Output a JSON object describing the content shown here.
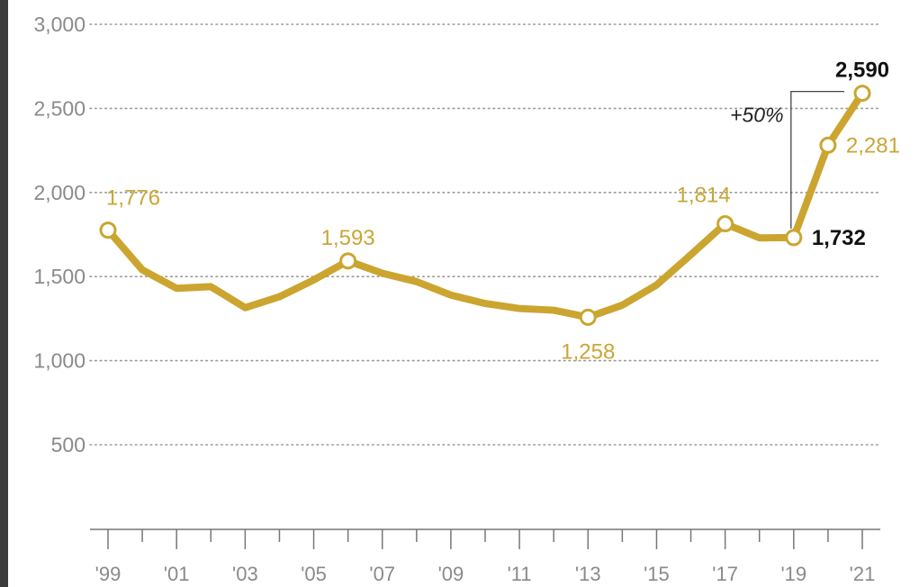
{
  "colors": {
    "line": "#cba52f",
    "label": "#c9a635",
    "grid": "#9a9a9a",
    "text": "#8a8a8a",
    "accent": "#111111"
  },
  "chart_data": {
    "type": "line",
    "title": "",
    "xlabel": "",
    "ylabel": "",
    "ylim": [
      0,
      3000
    ],
    "xlim": [
      1999,
      2021
    ],
    "grid": "horizontal-dotted",
    "y_ticks": [
      {
        "value": 500,
        "label": "500"
      },
      {
        "value": 1000,
        "label": "1,000"
      },
      {
        "value": 1500,
        "label": "1,500"
      },
      {
        "value": 2000,
        "label": "2,000"
      },
      {
        "value": 2500,
        "label": "2,500"
      },
      {
        "value": 3000,
        "label": "3,000"
      }
    ],
    "x_ticks": [
      {
        "value": 1999,
        "label": "'99"
      },
      {
        "value": 2001,
        "label": "'01"
      },
      {
        "value": 2003,
        "label": "'03"
      },
      {
        "value": 2005,
        "label": "'05"
      },
      {
        "value": 2007,
        "label": "'07"
      },
      {
        "value": 2009,
        "label": "'09"
      },
      {
        "value": 2011,
        "label": "'11"
      },
      {
        "value": 2013,
        "label": "'13"
      },
      {
        "value": 2015,
        "label": "'15"
      },
      {
        "value": 2017,
        "label": "'17"
      },
      {
        "value": 2019,
        "label": "'19"
      },
      {
        "value": 2021,
        "label": "'21"
      }
    ],
    "series": [
      {
        "points": [
          {
            "x": 1999,
            "y": 1776
          },
          {
            "x": 2000,
            "y": 1540
          },
          {
            "x": 2001,
            "y": 1430
          },
          {
            "x": 2002,
            "y": 1440
          },
          {
            "x": 2003,
            "y": 1315
          },
          {
            "x": 2004,
            "y": 1380
          },
          {
            "x": 2005,
            "y": 1480
          },
          {
            "x": 2006,
            "y": 1593
          },
          {
            "x": 2007,
            "y": 1520
          },
          {
            "x": 2008,
            "y": 1470
          },
          {
            "x": 2009,
            "y": 1390
          },
          {
            "x": 2010,
            "y": 1340
          },
          {
            "x": 2011,
            "y": 1310
          },
          {
            "x": 2012,
            "y": 1300
          },
          {
            "x": 2013,
            "y": 1258
          },
          {
            "x": 2014,
            "y": 1330
          },
          {
            "x": 2015,
            "y": 1450
          },
          {
            "x": 2016,
            "y": 1630
          },
          {
            "x": 2017,
            "y": 1814
          },
          {
            "x": 2018,
            "y": 1730
          },
          {
            "x": 2019,
            "y": 1732
          },
          {
            "x": 2020,
            "y": 2281
          },
          {
            "x": 2021,
            "y": 2590
          }
        ]
      }
    ],
    "markers": [
      1999,
      2006,
      2013,
      2017,
      2019,
      2020,
      2021
    ],
    "data_labels": [
      {
        "x": 1999,
        "y": 1776,
        "text": "1,776",
        "style": "gold",
        "pos": "above-right"
      },
      {
        "x": 2006,
        "y": 1593,
        "text": "1,593",
        "style": "gold",
        "pos": "above"
      },
      {
        "x": 2013,
        "y": 1258,
        "text": "1,258",
        "style": "gold",
        "pos": "below"
      },
      {
        "x": 2017,
        "y": 1814,
        "text": "1,814",
        "style": "gold",
        "pos": "above-left"
      },
      {
        "x": 2019,
        "y": 1732,
        "text": "1,732",
        "style": "black",
        "pos": "right"
      },
      {
        "x": 2020,
        "y": 2281,
        "text": "2,281",
        "style": "gold",
        "pos": "right"
      },
      {
        "x": 2021,
        "y": 2590,
        "text": "2,590",
        "style": "black",
        "pos": "above"
      }
    ],
    "annotation": {
      "text": "+50%",
      "from": {
        "x": 2019,
        "y": 1732
      },
      "to": {
        "x": 2021,
        "y": 2590
      }
    }
  }
}
